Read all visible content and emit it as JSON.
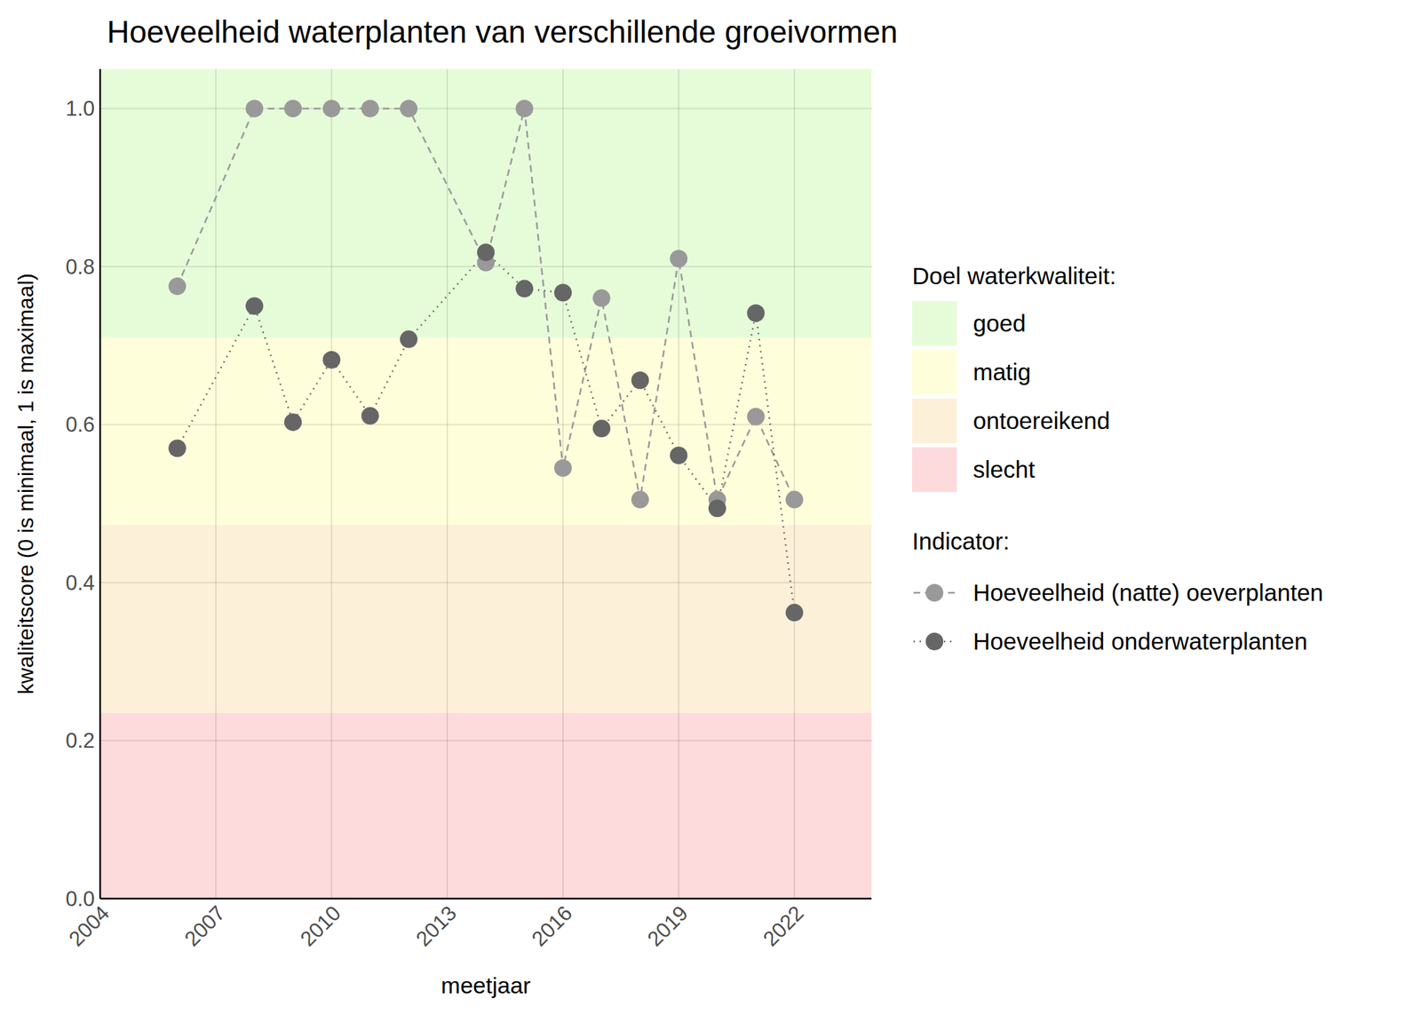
{
  "chart_data": {
    "type": "line",
    "title": "Hoeveelheid waterplanten van verschillende groeivormen",
    "x_label": "meetjaar",
    "y_label": "kwaliteitscore (0 is minimaal, 1 is maximaal)",
    "x": [
      2006,
      2008,
      2009,
      2010,
      2011,
      2012,
      2014,
      2015,
      2016,
      2017,
      2018,
      2019,
      2020,
      2021,
      2022
    ],
    "series": [
      {
        "name": "Hoeveelheid (natte) oeverplanten",
        "color": "#999999",
        "line_style": "dashed",
        "marker": "circle",
        "values": [
          0.775,
          1.0,
          1.0,
          1.0,
          1.0,
          1.0,
          0.805,
          1.0,
          0.545,
          0.76,
          0.505,
          0.81,
          0.505,
          0.61,
          0.505
        ]
      },
      {
        "name": "Hoeveelheid onderwaterplanten",
        "color": "#666666",
        "line_style": "dotted",
        "marker": "circle",
        "values": [
          0.57,
          0.75,
          0.603,
          0.682,
          0.611,
          0.708,
          0.818,
          0.772,
          0.767,
          0.595,
          0.656,
          0.561,
          0.494,
          0.741,
          0.362
        ]
      }
    ],
    "xlim": [
      2004,
      2024
    ],
    "xticks": [
      2004,
      2007,
      2010,
      2013,
      2016,
      2019,
      2022
    ],
    "ylim": [
      0,
      1.05
    ],
    "yticks": [
      {
        "value": 0,
        "label": "0.0"
      },
      0.2,
      0.4,
      0.6,
      0.8,
      {
        "value": 1,
        "label": "1.0"
      }
    ],
    "grid": true,
    "band_legend_title": "Doel waterkwaliteit:",
    "series_legend_title": "Indicator:",
    "bands": [
      {
        "name": "goed",
        "color": "#e6fcd9",
        "from": 0.71,
        "to": 1.05
      },
      {
        "name": "matig",
        "color": "#fefedb",
        "from": 0.473,
        "to": 0.71
      },
      {
        "name": "ontoereikend",
        "color": "#fdf0d9",
        "from": 0.235,
        "to": 0.473
      },
      {
        "name": "slecht",
        "color": "#fddadc",
        "from": 0,
        "to": 0.235
      }
    ]
  }
}
